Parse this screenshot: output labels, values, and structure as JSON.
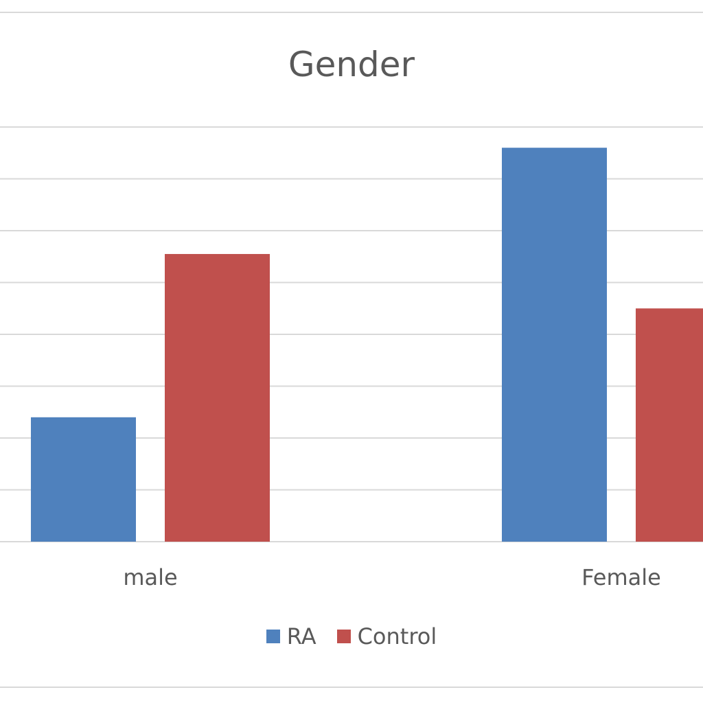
{
  "chart_data": {
    "type": "bar",
    "title": "Gender",
    "xlabel": "",
    "ylabel": "",
    "categories": [
      "male",
      "Female"
    ],
    "series": [
      {
        "name": "RA",
        "color": "#4f81bd",
        "values": [
          2.4,
          7.6
        ]
      },
      {
        "name": "Control",
        "color": "#c0504d",
        "values": [
          5.55,
          4.5
        ]
      }
    ],
    "ylim": [
      0,
      8
    ],
    "grid": true,
    "legend_position": "bottom"
  }
}
